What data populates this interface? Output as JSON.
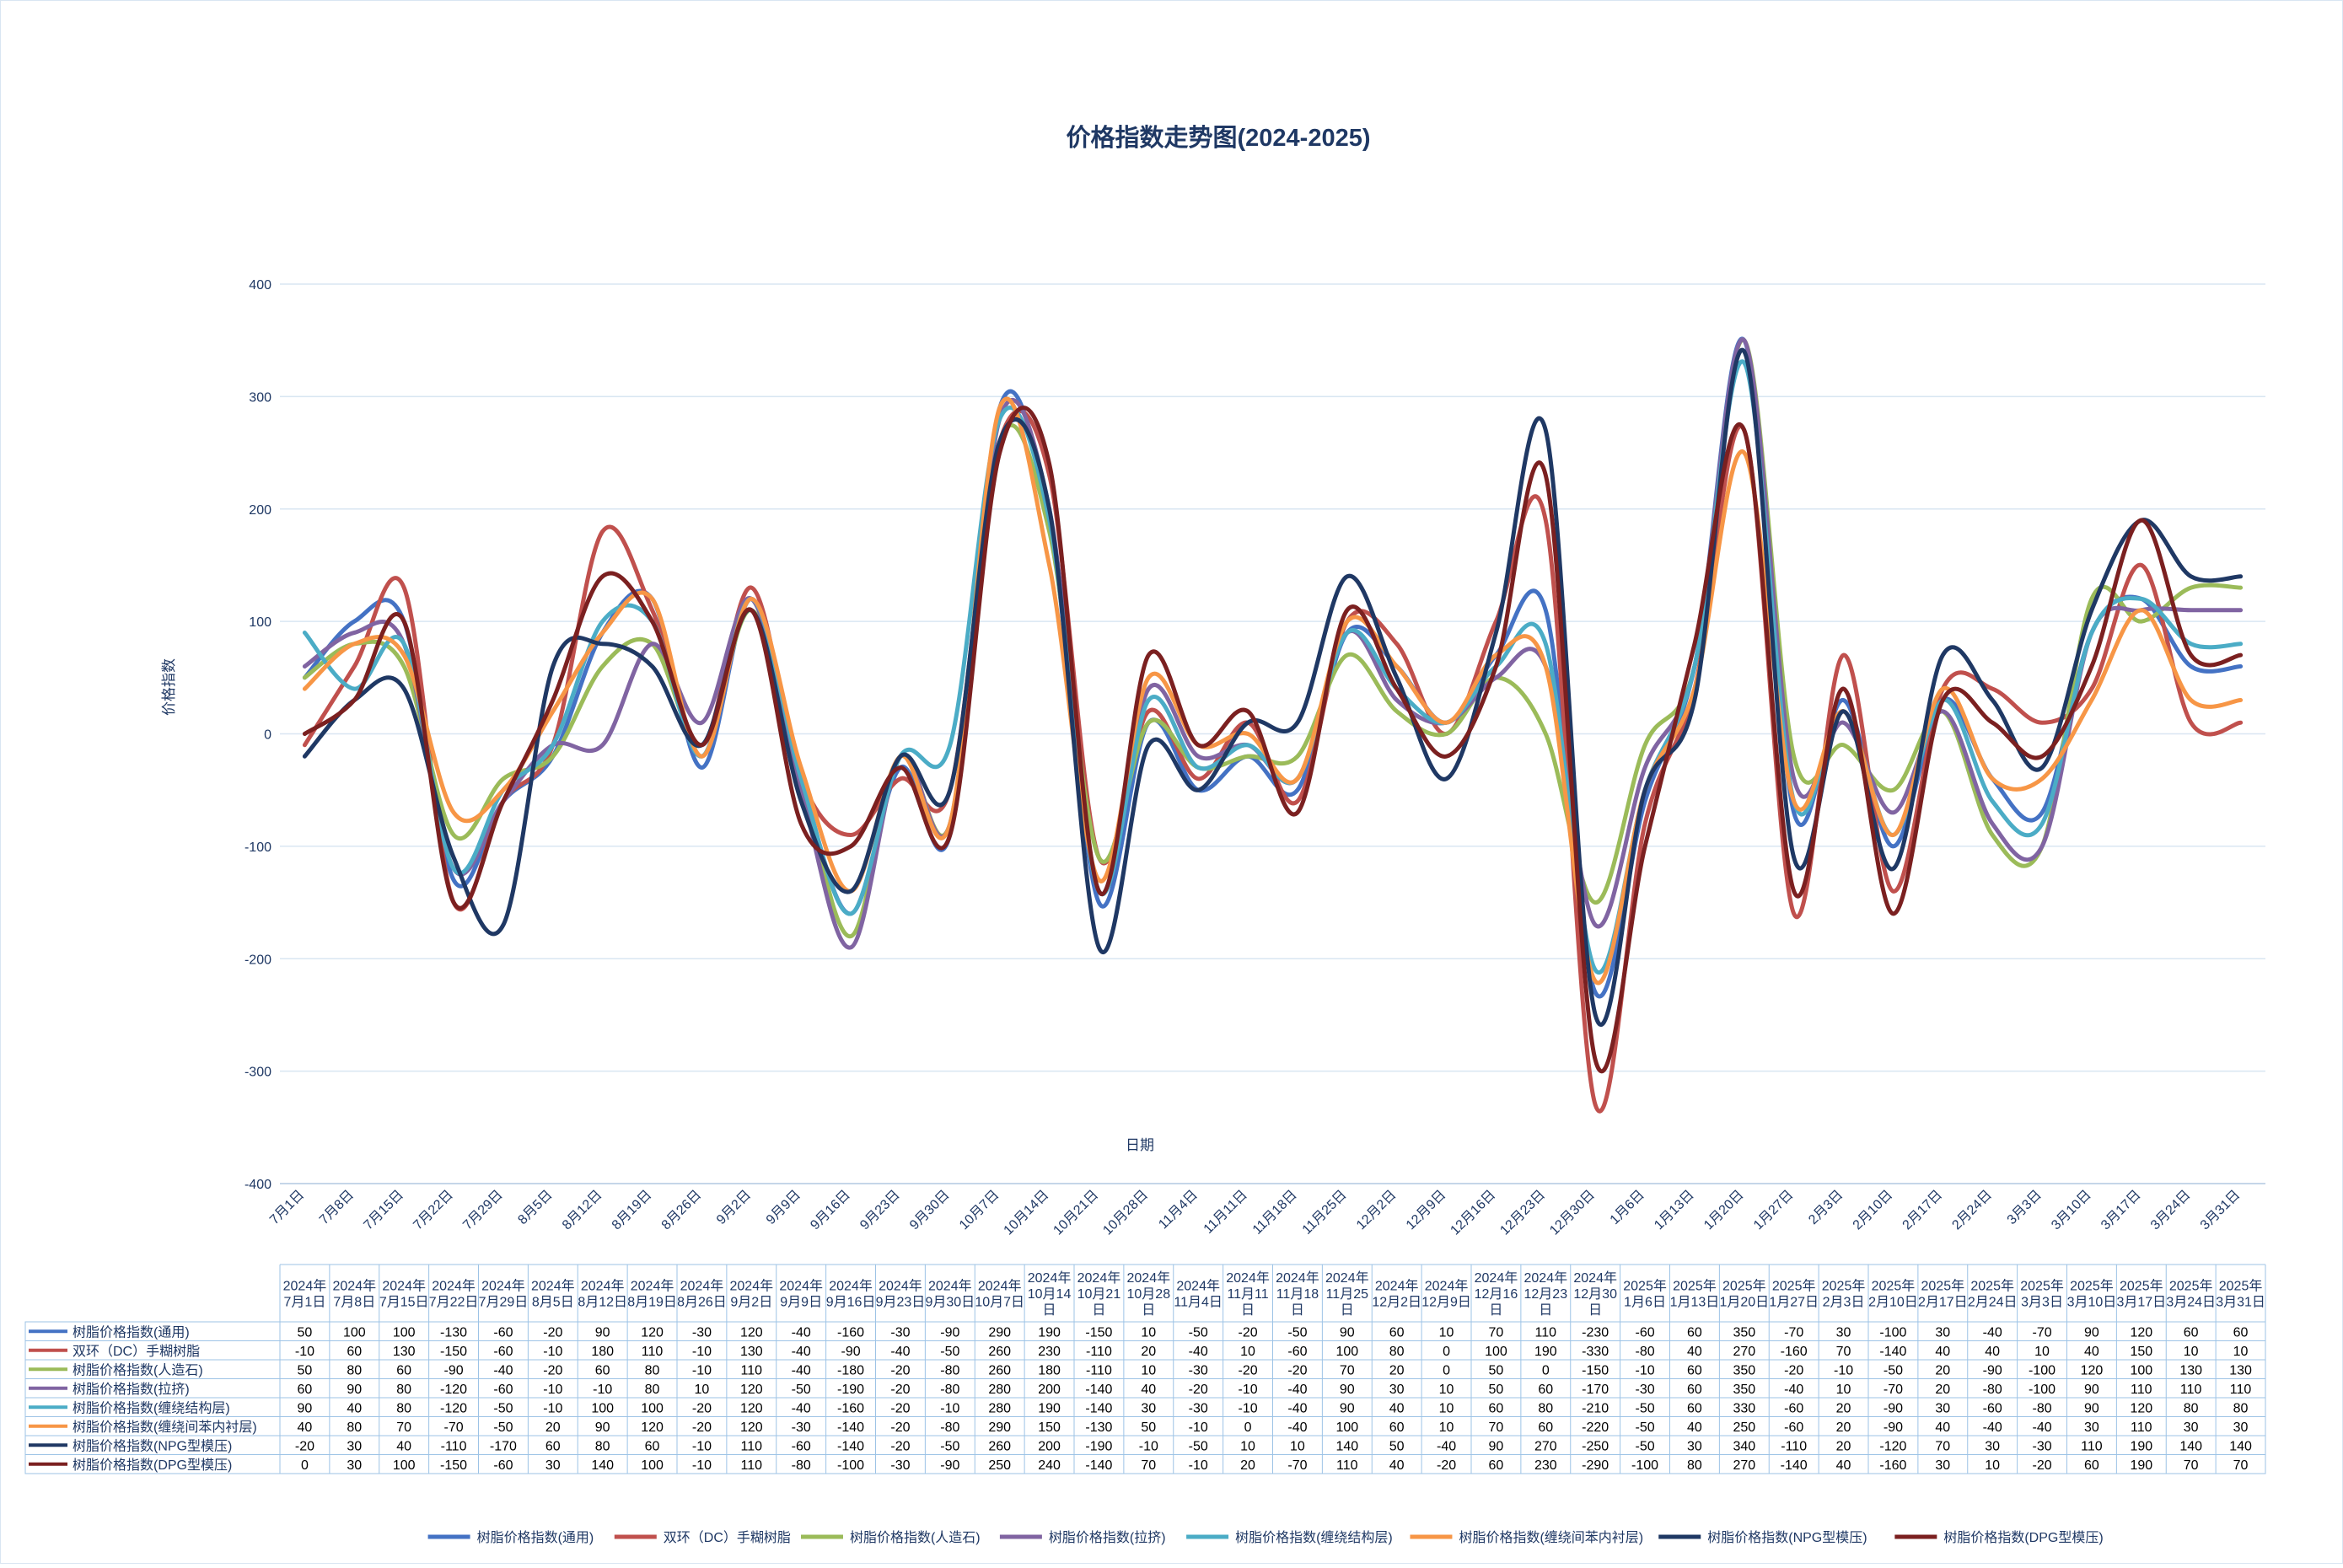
{
  "chart_data": {
    "type": "line",
    "title": "价格指数走势图(2024-2025)",
    "xlabel": "日期",
    "ylabel": "价格指数",
    "ylim": [
      -400,
      400
    ],
    "yticks": [
      -400,
      -300,
      -200,
      -100,
      0,
      100,
      200,
      300,
      400
    ],
    "grid": true,
    "legend": "bottom",
    "categories": [
      "7月1日",
      "7月8日",
      "7月15日",
      "7月22日",
      "7月29日",
      "8月5日",
      "8月12日",
      "8月19日",
      "8月26日",
      "9月2日",
      "9月9日",
      "9月16日",
      "9月23日",
      "9月30日",
      "10月7日",
      "10月14日",
      "10月21日",
      "10月28日",
      "11月4日",
      "11月11日",
      "11月18日",
      "11月25日",
      "12月2日",
      "12月9日",
      "12月16日",
      "12月23日",
      "12月30日",
      "1月6日",
      "1月13日",
      "1月20日",
      "1月27日",
      "2月3日",
      "2月10日",
      "2月17日",
      "2月24日",
      "3月3日",
      "3月10日",
      "3月17日",
      "3月24日",
      "3月31日"
    ],
    "table_headers": [
      "2024年7月1日",
      "2024年7月8日",
      "2024年7月15日",
      "2024年7月22日",
      "2024年7月29日",
      "2024年8月5日",
      "2024年8月12日",
      "2024年8月19日",
      "2024年8月26日",
      "2024年9月2日",
      "2024年9月9日",
      "2024年9月16日",
      "2024年9月23日",
      "2024年9月30日",
      "2024年10月7日",
      "2024年10月14日",
      "2024年10月21日",
      "2024年10月28日",
      "2024年11月4日",
      "2024年11月11日",
      "2024年11月18日",
      "2024年11月25日",
      "2024年12月2日",
      "2024年12月9日",
      "2024年12月16日",
      "2024年12月23日",
      "2024年12月30日",
      "2025年1月6日",
      "2025年1月13日",
      "2025年1月20日",
      "2025年1月27日",
      "2025年2月3日",
      "2025年2月10日",
      "2025年2月17日",
      "2025年2月24日",
      "2025年3月3日",
      "2025年3月10日",
      "2025年3月17日",
      "2025年3月24日",
      "2025年3月31日"
    ],
    "series": [
      {
        "name": "树脂价格指数(通用)",
        "color": "#4472c4",
        "values": [
          50,
          100,
          100,
          -130,
          -60,
          -20,
          90,
          120,
          -30,
          120,
          -40,
          -160,
          -30,
          -90,
          290,
          190,
          -150,
          10,
          -50,
          -20,
          -50,
          90,
          60,
          10,
          70,
          110,
          -230,
          -60,
          60,
          350,
          -70,
          30,
          -100,
          30,
          -40,
          -70,
          90,
          120,
          60,
          60
        ]
      },
      {
        "name": "双环（DC）手糊树脂",
        "color": "#c0504d",
        "values": [
          -10,
          60,
          130,
          -150,
          -60,
          -10,
          180,
          110,
          -10,
          130,
          -40,
          -90,
          -40,
          -50,
          260,
          230,
          -110,
          20,
          -40,
          10,
          -60,
          100,
          80,
          0,
          100,
          190,
          -330,
          -80,
          40,
          270,
          -160,
          70,
          -140,
          40,
          40,
          10,
          40,
          150,
          10,
          10
        ]
      },
      {
        "name": "树脂价格指数(人造石)",
        "color": "#9bbb59",
        "values": [
          50,
          80,
          60,
          -90,
          -40,
          -20,
          60,
          80,
          -10,
          110,
          -40,
          -180,
          -20,
          -80,
          260,
          180,
          -110,
          10,
          -30,
          -20,
          -20,
          70,
          20,
          0,
          50,
          0,
          -150,
          -10,
          60,
          350,
          -20,
          -10,
          -50,
          20,
          -90,
          -100,
          120,
          100,
          130,
          130
        ]
      },
      {
        "name": "树脂价格指数(拉挤)",
        "color": "#8064a2",
        "values": [
          60,
          90,
          80,
          -120,
          -60,
          -10,
          -10,
          80,
          10,
          120,
          -50,
          -190,
          -20,
          -80,
          280,
          200,
          -140,
          40,
          -20,
          -10,
          -40,
          90,
          30,
          10,
          50,
          60,
          -170,
          -30,
          60,
          350,
          -40,
          10,
          -70,
          20,
          -80,
          -100,
          90,
          110,
          110,
          110
        ]
      },
      {
        "name": "树脂价格指数(缠绕结构层)",
        "color": "#4bacc6",
        "values": [
          90,
          40,
          80,
          -120,
          -50,
          -10,
          100,
          100,
          -20,
          120,
          -40,
          -160,
          -20,
          -10,
          280,
          190,
          -140,
          30,
          -30,
          -10,
          -40,
          90,
          40,
          10,
          60,
          80,
          -210,
          -50,
          60,
          330,
          -60,
          20,
          -90,
          30,
          -60,
          -80,
          90,
          120,
          80,
          80
        ]
      },
      {
        "name": "树脂价格指数(缠绕间苯内衬层)",
        "color": "#f79646",
        "values": [
          40,
          80,
          70,
          -70,
          -50,
          20,
          90,
          120,
          -20,
          120,
          -30,
          -140,
          -20,
          -80,
          290,
          150,
          -130,
          50,
          -10,
          0,
          -40,
          100,
          60,
          10,
          70,
          60,
          -220,
          -50,
          40,
          250,
          -60,
          20,
          -90,
          40,
          -40,
          -40,
          30,
          110,
          30,
          30
        ]
      },
      {
        "name": "树脂价格指数(NPG型模压)",
        "color": "#1f3864",
        "values": [
          -20,
          30,
          40,
          -110,
          -170,
          60,
          80,
          60,
          -10,
          110,
          -60,
          -140,
          -20,
          -50,
          260,
          200,
          -190,
          -10,
          -50,
          10,
          10,
          140,
          50,
          -40,
          90,
          270,
          -250,
          -50,
          30,
          340,
          -110,
          20,
          -120,
          70,
          30,
          -30,
          110,
          190,
          140,
          140
        ]
      },
      {
        "name": "树脂价格指数(DPG型模压)",
        "color": "#7b2020",
        "values": [
          0,
          30,
          100,
          -150,
          -60,
          30,
          140,
          100,
          -10,
          110,
          -80,
          -100,
          -30,
          -90,
          250,
          240,
          -140,
          70,
          -10,
          20,
          -70,
          110,
          40,
          -20,
          60,
          230,
          -290,
          -100,
          80,
          270,
          -140,
          40,
          -160,
          30,
          10,
          -20,
          60,
          190,
          70,
          70
        ]
      }
    ]
  }
}
